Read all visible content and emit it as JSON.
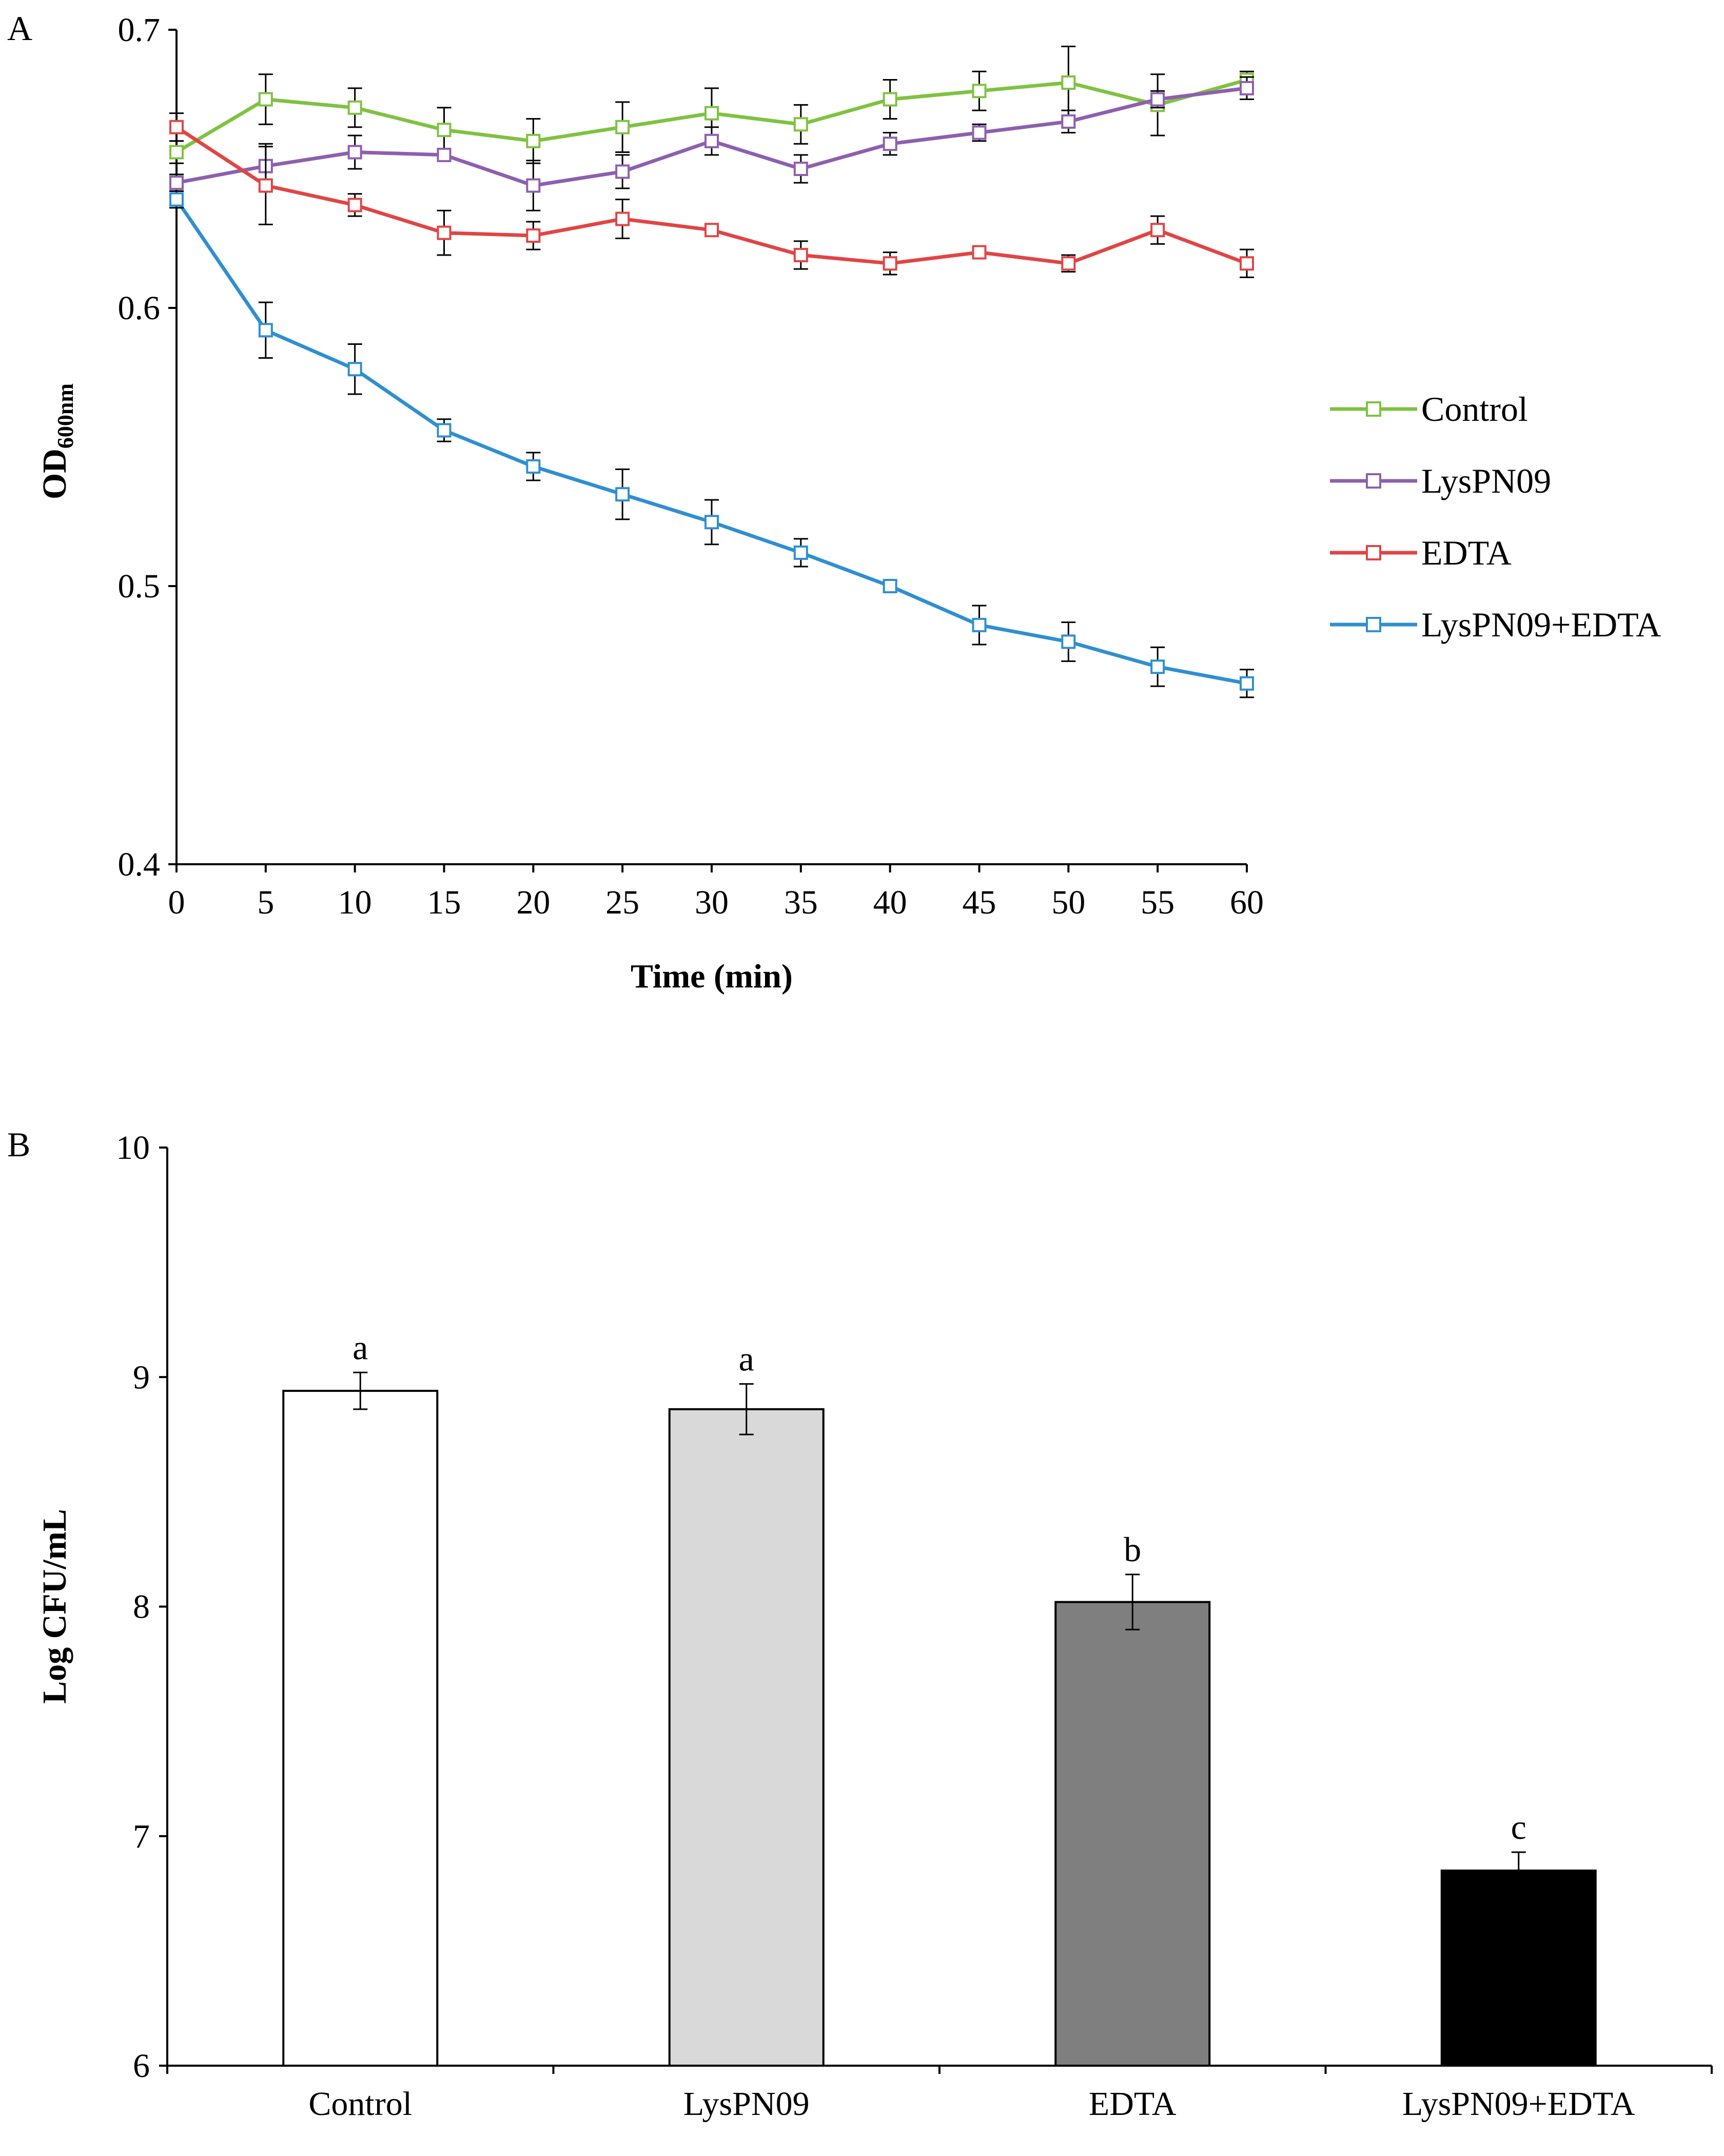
{
  "chart_data": [
    {
      "panel": "A",
      "type": "line",
      "title": "",
      "xlabel": "Time (min)",
      "ylabel_main": "OD",
      "ylabel_sub": "600nm",
      "x": [
        0,
        5,
        10,
        15,
        20,
        25,
        30,
        35,
        40,
        45,
        50,
        55,
        60
      ],
      "xlim": [
        0,
        60
      ],
      "ylim": [
        0.4,
        0.7
      ],
      "x_ticks": [
        "0",
        "5",
        "10",
        "15",
        "20",
        "25",
        "30",
        "35",
        "40",
        "45",
        "50",
        "55",
        "60"
      ],
      "y_ticks": [
        "0.4",
        "0.5",
        "0.6",
        "0.7"
      ],
      "grid": false,
      "legend_position": "right",
      "series": [
        {
          "name": "Control",
          "color": "#7fc241",
          "values": [
            0.656,
            0.675,
            0.672,
            0.664,
            0.66,
            0.665,
            0.67,
            0.666,
            0.675,
            0.678,
            0.681,
            0.673,
            0.682
          ],
          "errors": [
            0.004,
            0.009,
            0.007,
            0.008,
            0.008,
            0.009,
            0.009,
            0.007,
            0.007,
            0.007,
            0.013,
            0.011,
            0.003
          ]
        },
        {
          "name": "LysPN09",
          "color": "#8e5fae",
          "values": [
            0.645,
            0.651,
            0.656,
            0.655,
            0.644,
            0.649,
            0.66,
            0.65,
            0.659,
            0.663,
            0.667,
            0.675,
            0.679
          ],
          "errors": [
            0.003,
            0.008,
            0.006,
            0.002,
            0.009,
            0.006,
            0.005,
            0.005,
            0.004,
            0.003,
            0.004,
            0.003,
            0.004
          ]
        },
        {
          "name": "EDTA",
          "color": "#e04545",
          "values": [
            0.665,
            0.644,
            0.637,
            0.627,
            0.626,
            0.632,
            0.628,
            0.619,
            0.616,
            0.62,
            0.616,
            0.628,
            0.616
          ],
          "errors": [
            0.005,
            0.014,
            0.004,
            0.008,
            0.005,
            0.007,
            0.002,
            0.005,
            0.004,
            0.002,
            0.003,
            0.005,
            0.005
          ]
        },
        {
          "name": "LysPN09+EDTA",
          "color": "#2f8fd0",
          "values": [
            0.639,
            0.592,
            0.578,
            0.556,
            0.543,
            0.533,
            0.523,
            0.512,
            0.5,
            0.486,
            0.48,
            0.471,
            0.465
          ],
          "errors": [
            0.003,
            0.01,
            0.009,
            0.004,
            0.005,
            0.009,
            0.008,
            0.005,
            0.002,
            0.007,
            0.007,
            0.007,
            0.005
          ]
        }
      ]
    },
    {
      "panel": "B",
      "type": "bar",
      "title": "",
      "xlabel": "",
      "ylabel": "Log CFU/mL",
      "categories": [
        "Control",
        "LysPN09",
        "EDTA",
        "LysPN09+EDTA"
      ],
      "values": [
        8.94,
        8.86,
        8.02,
        6.85
      ],
      "errors": [
        0.08,
        0.11,
        0.12,
        0.08
      ],
      "significance_letters": [
        "a",
        "a",
        "b",
        "c"
      ],
      "bar_colors": [
        "#ffffff",
        "#d9d9d9",
        "#7f7f7f",
        "#000000"
      ],
      "ylim": [
        6,
        10
      ],
      "y_ticks": [
        "6",
        "7",
        "8",
        "9",
        "10"
      ],
      "grid": false
    }
  ]
}
